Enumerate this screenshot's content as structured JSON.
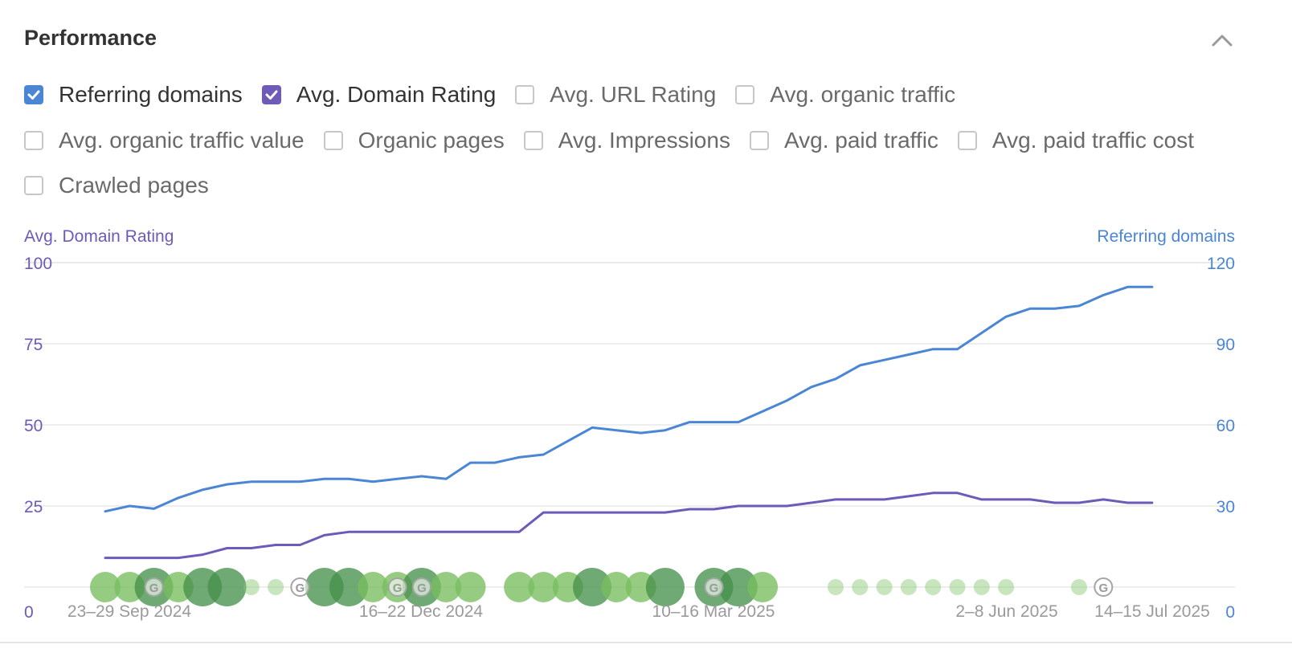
{
  "section": {
    "title": "Performance"
  },
  "metrics": {
    "row1": [
      {
        "label": "Referring domains",
        "checked": true,
        "color": "#4a86d4"
      },
      {
        "label": "Avg. Domain Rating",
        "checked": true,
        "color": "#6e5ab8"
      },
      {
        "label": "Avg. URL Rating",
        "checked": false
      },
      {
        "label": "Avg. organic traffic",
        "checked": false
      }
    ],
    "row2": [
      {
        "label": "Avg. organic traffic value",
        "checked": false
      },
      {
        "label": "Organic pages",
        "checked": false
      },
      {
        "label": "Avg. Impressions",
        "checked": false
      },
      {
        "label": "Avg. paid traffic",
        "checked": false
      },
      {
        "label": "Avg. paid traffic cost",
        "checked": false
      }
    ],
    "row3": [
      {
        "label": "Crawled pages",
        "checked": false
      }
    ]
  },
  "chart_data": {
    "type": "line",
    "y_left_label": "Avg. Domain Rating",
    "y_right_label": "Referring domains",
    "y_left_ticks": [
      "0",
      "25",
      "50",
      "75",
      "100"
    ],
    "y_right_ticks": [
      "0",
      "30",
      "60",
      "90",
      "120"
    ],
    "ylim_left": [
      0,
      100
    ],
    "ylim_right": [
      0,
      120
    ],
    "x_tick_labels": [
      "23–29 Sep 2024",
      "16–22 Dec 2024",
      "10–16 Mar 2025",
      "2–8 Jun 2025",
      "14–15 Jul 2025"
    ],
    "grid": true,
    "colors": {
      "referring_domains": "#4a86d4",
      "domain_rating": "#6e5ab8"
    },
    "series": [
      {
        "name": "Referring domains",
        "axis": "right",
        "values": [
          28,
          30,
          29,
          33,
          36,
          38,
          39,
          39,
          39,
          40,
          40,
          39,
          40,
          41,
          40,
          46,
          46,
          48,
          49,
          54,
          59,
          58,
          57,
          58,
          61,
          61,
          61,
          65,
          69,
          74,
          77,
          82,
          84,
          86,
          88,
          88,
          94,
          100,
          103,
          103,
          104,
          108,
          111,
          111
        ]
      },
      {
        "name": "Avg. Domain Rating",
        "axis": "left",
        "values": [
          9,
          9,
          9,
          9,
          10,
          12,
          12,
          13,
          13,
          16,
          17,
          17,
          17,
          17,
          17,
          17,
          17,
          17,
          23,
          23,
          23,
          23,
          23,
          23,
          24,
          24,
          25,
          25,
          25,
          26,
          27,
          27,
          27,
          28,
          29,
          29,
          27,
          27,
          27,
          26,
          26,
          27,
          26,
          26
        ]
      }
    ],
    "event_markers": [
      {
        "week": 0,
        "size": "l",
        "shade": "mid"
      },
      {
        "week": 1,
        "size": "l",
        "shade": "mid"
      },
      {
        "week": 2,
        "size": "xl",
        "shade": "dark"
      },
      {
        "week": 3,
        "size": "l",
        "shade": "mid"
      },
      {
        "week": 4,
        "size": "xl",
        "shade": "dark"
      },
      {
        "week": 5,
        "size": "xl",
        "shade": "dark"
      },
      {
        "week": 6,
        "size": "s",
        "shade": "light"
      },
      {
        "week": 7,
        "size": "s",
        "shade": "light"
      },
      {
        "week": 9,
        "size": "xl",
        "shade": "dark"
      },
      {
        "week": 10,
        "size": "xl",
        "shade": "dark"
      },
      {
        "week": 11,
        "size": "l",
        "shade": "mid"
      },
      {
        "week": 12,
        "size": "l",
        "shade": "mid"
      },
      {
        "week": 13,
        "size": "xl",
        "shade": "dark"
      },
      {
        "week": 14,
        "size": "l",
        "shade": "mid"
      },
      {
        "week": 15,
        "size": "l",
        "shade": "mid"
      },
      {
        "week": 17,
        "size": "l",
        "shade": "mid"
      },
      {
        "week": 18,
        "size": "l",
        "shade": "mid"
      },
      {
        "week": 19,
        "size": "l",
        "shade": "mid"
      },
      {
        "week": 20,
        "size": "xl",
        "shade": "dark"
      },
      {
        "week": 21,
        "size": "l",
        "shade": "mid"
      },
      {
        "week": 22,
        "size": "l",
        "shade": "mid"
      },
      {
        "week": 23,
        "size": "xl",
        "shade": "dark"
      },
      {
        "week": 25,
        "size": "xl",
        "shade": "dark"
      },
      {
        "week": 26,
        "size": "xl",
        "shade": "dark"
      },
      {
        "week": 27,
        "size": "l",
        "shade": "mid"
      },
      {
        "week": 30,
        "size": "s",
        "shade": "light"
      },
      {
        "week": 31,
        "size": "s",
        "shade": "light"
      },
      {
        "week": 32,
        "size": "s",
        "shade": "light"
      },
      {
        "week": 33,
        "size": "s",
        "shade": "light"
      },
      {
        "week": 34,
        "size": "s",
        "shade": "light"
      },
      {
        "week": 35,
        "size": "s",
        "shade": "light"
      },
      {
        "week": 36,
        "size": "s",
        "shade": "light"
      },
      {
        "week": 37,
        "size": "s",
        "shade": "light"
      },
      {
        "week": 40,
        "size": "s",
        "shade": "light"
      }
    ],
    "update_markers": [
      {
        "week": 2,
        "icon": "google-update-icon"
      },
      {
        "week": 8,
        "icon": "google-update-icon"
      },
      {
        "week": 12,
        "icon": "google-update-icon"
      },
      {
        "week": 13,
        "icon": "google-update-icon"
      },
      {
        "week": 25,
        "icon": "google-update-icon"
      },
      {
        "week": 41,
        "icon": "google-update-icon"
      }
    ]
  }
}
